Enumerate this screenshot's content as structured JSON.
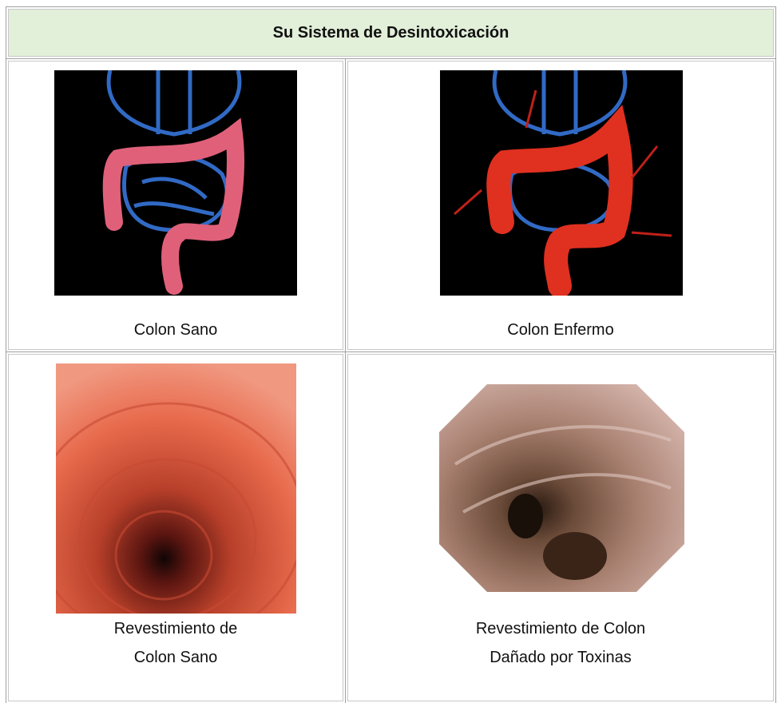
{
  "table": {
    "title": "Su Sistema de Desintoxicación",
    "rows": [
      [
        {
          "caption": [
            "Colon Sano"
          ]
        },
        {
          "caption": [
            "Colon Enfermo"
          ]
        }
      ],
      [
        {
          "caption": [
            "Revestimiento de",
            "Colon Sano"
          ]
        },
        {
          "caption": [
            "Revestimiento de Colon",
            "Dañado por Toxinas"
          ]
        }
      ]
    ]
  }
}
